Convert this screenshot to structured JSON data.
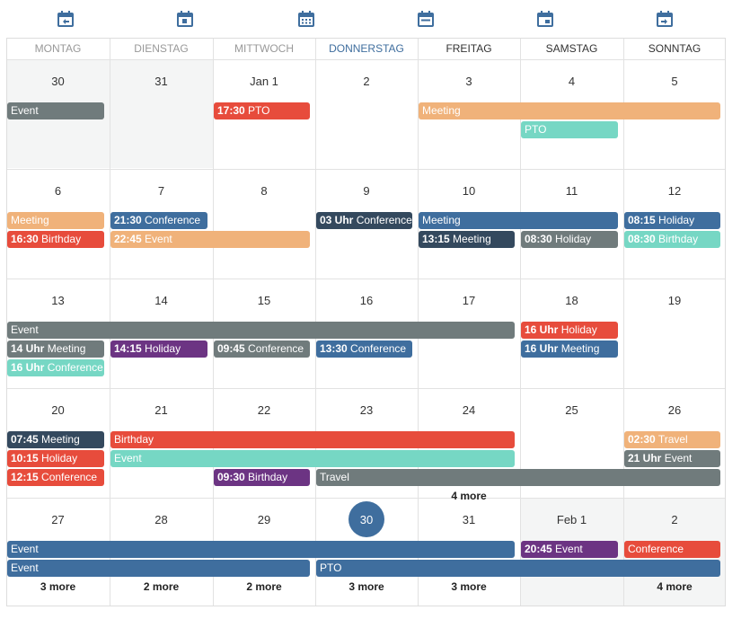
{
  "toolbar": {
    "buttons": [
      {
        "icon": "calendar-prev-icon"
      },
      {
        "icon": "calendar-day-icon"
      },
      {
        "icon": "calendar-month-icon"
      },
      {
        "icon": "calendar-week-icon"
      },
      {
        "icon": "calendar-weekend-icon"
      },
      {
        "icon": "calendar-next-icon"
      }
    ]
  },
  "weekdays": [
    "MONTAG",
    "DIENSTAG",
    "MITTWOCH",
    "DONNERSTAG",
    "FREITAG",
    "SAMSTAG",
    "SONNTAG"
  ],
  "colors": {
    "gray": "#707b7c",
    "red": "#e74c3c",
    "orange": "#f0b27a",
    "teal": "#76d7c4",
    "blue": "#3f6e9e",
    "navy": "#34495e",
    "purple": "#6c3483",
    "today": "#3f6e9e",
    "header_blue": "#3f6e9e"
  },
  "weeks": [
    {
      "days": [
        "30",
        "31",
        "Jan 1",
        "2",
        "3",
        "4",
        "5"
      ],
      "events": [
        {
          "time": "",
          "title": "Event",
          "color": "gray"
        },
        {
          "time": "17:30",
          "title": "PTO",
          "color": "red"
        },
        {
          "time": "",
          "title": "Meeting",
          "color": "orange"
        },
        {
          "time": "",
          "title": "PTO",
          "color": "teal"
        }
      ],
      "more": []
    },
    {
      "days": [
        "6",
        "7",
        "8",
        "9",
        "10",
        "11",
        "12"
      ],
      "events": [
        {
          "time": "",
          "title": "Meeting",
          "color": "orange"
        },
        {
          "time": "21:30",
          "title": "Conference",
          "color": "blue"
        },
        {
          "time": "03 Uhr",
          "title": "Conference",
          "color": "navy"
        },
        {
          "time": "",
          "title": "Meeting",
          "color": "blue"
        },
        {
          "time": "08:15",
          "title": "Holiday",
          "color": "blue"
        },
        {
          "time": "16:30",
          "title": "Birthday",
          "color": "red"
        },
        {
          "time": "22:45",
          "title": "Event",
          "color": "orange"
        },
        {
          "time": "13:15",
          "title": "Meeting",
          "color": "navy"
        },
        {
          "time": "08:30",
          "title": "Holiday",
          "color": "gray"
        },
        {
          "time": "08:30",
          "title": "Birthday",
          "color": "teal"
        }
      ],
      "more": []
    },
    {
      "days": [
        "13",
        "14",
        "15",
        "16",
        "17",
        "18",
        "19"
      ],
      "events": [
        {
          "time": "",
          "title": "Event",
          "color": "gray"
        },
        {
          "time": "16 Uhr",
          "title": "Holiday",
          "color": "red"
        },
        {
          "time": "14 Uhr",
          "title": "Meeting",
          "color": "gray"
        },
        {
          "time": "14:15",
          "title": "Holiday",
          "color": "purple"
        },
        {
          "time": "09:45",
          "title": "Conference",
          "color": "gray"
        },
        {
          "time": "13:30",
          "title": "Conference",
          "color": "blue"
        },
        {
          "time": "16 Uhr",
          "title": "Meeting",
          "color": "blue"
        },
        {
          "time": "16 Uhr",
          "title": "Conference",
          "color": "teal"
        }
      ],
      "more": []
    },
    {
      "days": [
        "20",
        "21",
        "22",
        "23",
        "24",
        "25",
        "26"
      ],
      "events": [
        {
          "time": "07:45",
          "title": "Meeting",
          "color": "navy"
        },
        {
          "time": "",
          "title": "Birthday",
          "color": "red"
        },
        {
          "time": "02:30",
          "title": "Travel",
          "color": "orange"
        },
        {
          "time": "10:15",
          "title": "Holiday",
          "color": "red"
        },
        {
          "time": "",
          "title": "Event",
          "color": "teal"
        },
        {
          "time": "21 Uhr",
          "title": "Event",
          "color": "gray"
        },
        {
          "time": "12:15",
          "title": "Conference",
          "color": "red"
        },
        {
          "time": "09:30",
          "title": "Birthday",
          "color": "purple"
        },
        {
          "time": "",
          "title": "Travel",
          "color": "gray"
        }
      ],
      "more": [
        {
          "label": "4 more"
        }
      ]
    },
    {
      "days": [
        "27",
        "28",
        "29",
        "30",
        "31",
        "Feb 1",
        "2"
      ],
      "events": [
        {
          "time": "",
          "title": "Event",
          "color": "blue"
        },
        {
          "time": "20:45",
          "title": "Event",
          "color": "purple"
        },
        {
          "time": "",
          "title": "Conference",
          "color": "red"
        },
        {
          "time": "",
          "title": "Event",
          "color": "blue"
        },
        {
          "time": "",
          "title": "PTO",
          "color": "blue"
        }
      ],
      "more": [
        {
          "label": "3 more"
        },
        {
          "label": "2 more"
        },
        {
          "label": "2 more"
        },
        {
          "label": "3 more"
        },
        {
          "label": "3 more"
        },
        {
          "label": "4 more"
        }
      ]
    }
  ]
}
